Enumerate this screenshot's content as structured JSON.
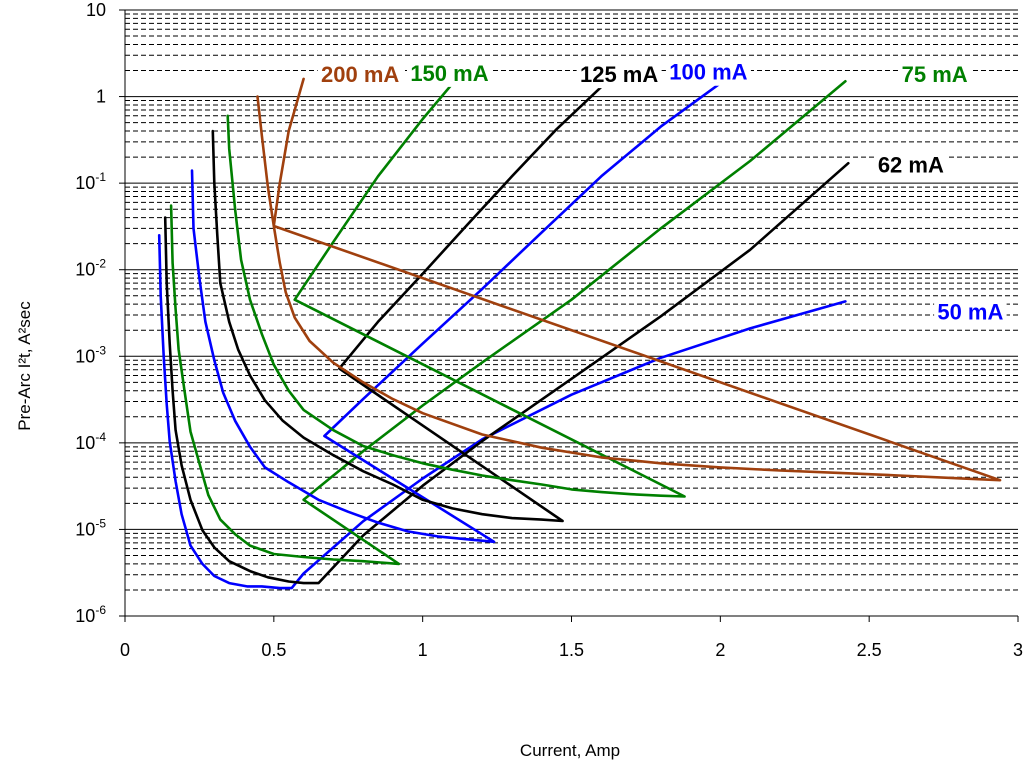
{
  "chart_data": {
    "type": "line",
    "title": "",
    "xlabel": "Current, Amp",
    "ylabel": "Pre-Arc I²t, A²sec",
    "xlim": [
      0,
      3
    ],
    "ylim": [
      1e-06,
      10
    ],
    "y_scale": "log",
    "grid": true,
    "legend": "none (labels placed on the chart next to the curves)",
    "x_ticks": [
      "0",
      "0.5",
      "1",
      "1.5",
      "2",
      "2.5",
      "3"
    ],
    "y_ticks": [
      {
        "value": 10,
        "base": "10",
        "exp": ""
      },
      {
        "value": 1,
        "base": "1",
        "exp": ""
      },
      {
        "value": 0.1,
        "base": "10",
        "exp": "-1"
      },
      {
        "value": 0.01,
        "base": "10",
        "exp": "-2"
      },
      {
        "value": 0.001,
        "base": "10",
        "exp": "-3"
      },
      {
        "value": 0.0001,
        "base": "10",
        "exp": "-4"
      },
      {
        "value": 1e-05,
        "base": "10",
        "exp": "-5"
      },
      {
        "value": 1e-06,
        "base": "10",
        "exp": "-6"
      }
    ],
    "series": [
      {
        "name": "50 mA",
        "color": "#0000ff",
        "label_at": [
          2.84,
          0.0028
        ],
        "points": [
          [
            0.115,
            0.025
          ],
          [
            0.12,
            0.005
          ],
          [
            0.13,
            0.001
          ],
          [
            0.14,
            0.00028
          ],
          [
            0.15,
            0.000104
          ],
          [
            0.17,
            3.6e-05
          ],
          [
            0.19,
            1.5e-05
          ],
          [
            0.22,
            6.5e-06
          ],
          [
            0.26,
            4e-06
          ],
          [
            0.3,
            2.9e-06
          ],
          [
            0.35,
            2.4e-06
          ],
          [
            0.41,
            2.2e-06
          ],
          [
            0.46,
            2.2e-06
          ],
          [
            0.52,
            2.1e-06
          ],
          [
            0.56,
            2.1e-06
          ],
          [
            0.6,
            3.1e-06
          ],
          [
            0.8,
            1.24e-05
          ],
          [
            1.0,
            3.87e-05
          ],
          [
            1.2,
            0.00011
          ],
          [
            1.5,
            0.00036
          ],
          [
            1.8,
            0.00096
          ],
          [
            2.1,
            0.0021
          ],
          [
            2.42,
            0.0043
          ]
        ]
      },
      {
        "name": "62 mA",
        "color": "#000000",
        "label_at": [
          2.64,
          0.14
        ],
        "points": [
          [
            0.135,
            0.04
          ],
          [
            0.14,
            0.007
          ],
          [
            0.15,
            0.0014
          ],
          [
            0.16,
            0.0004
          ],
          [
            0.17,
            0.00014
          ],
          [
            0.19,
            5.5e-05
          ],
          [
            0.22,
            2.2e-05
          ],
          [
            0.26,
            9.8e-06
          ],
          [
            0.3,
            6.2e-06
          ],
          [
            0.35,
            4.3e-06
          ],
          [
            0.42,
            3.3e-06
          ],
          [
            0.48,
            2.8e-06
          ],
          [
            0.55,
            2.5e-06
          ],
          [
            0.6,
            2.4e-06
          ],
          [
            0.65,
            2.4e-06
          ],
          [
            0.8,
            8.5e-06
          ],
          [
            1.0,
            3.2e-05
          ],
          [
            1.2,
            0.000105
          ],
          [
            1.5,
            0.00055
          ],
          [
            1.8,
            0.0029
          ],
          [
            2.1,
            0.017
          ],
          [
            2.43,
            0.17
          ]
        ]
      },
      {
        "name": "75 mA",
        "color": "#008000",
        "label_at": [
          2.72,
          1.55
        ],
        "points": [
          [
            0.155,
            0.055
          ],
          [
            0.16,
            0.012
          ],
          [
            0.17,
            0.0035
          ],
          [
            0.18,
            0.0012
          ],
          [
            0.2,
            0.0004
          ],
          [
            0.22,
            0.000135
          ],
          [
            0.25,
            5.8e-05
          ],
          [
            0.28,
            2.5e-05
          ],
          [
            0.32,
            1.3e-05
          ],
          [
            0.37,
            8.8e-06
          ],
          [
            0.42,
            6.5e-06
          ],
          [
            0.5,
            5.2e-06
          ],
          [
            0.6,
            4.8e-06
          ],
          [
            0.7,
            4.5e-06
          ],
          [
            0.8,
            4.3e-06
          ],
          [
            0.92,
            4e-06
          ],
          [
            0.6,
            2.2e-05
          ],
          [
            0.8,
            8e-05
          ],
          [
            1.0,
            0.00027
          ],
          [
            1.2,
            0.00085
          ],
          [
            1.5,
            0.0045
          ],
          [
            1.8,
            0.03
          ],
          [
            2.1,
            0.18
          ],
          [
            2.42,
            1.5
          ]
        ]
      },
      {
        "name": "100 mA",
        "color": "#0000ff",
        "label_at": [
          1.96,
          1.65
        ],
        "points": [
          [
            0.225,
            0.14
          ],
          [
            0.23,
            0.03
          ],
          [
            0.25,
            0.008
          ],
          [
            0.27,
            0.0025
          ],
          [
            0.3,
            0.0009
          ],
          [
            0.33,
            0.00038
          ],
          [
            0.37,
            0.00018
          ],
          [
            0.42,
            9e-05
          ],
          [
            0.47,
            5.2e-05
          ],
          [
            0.55,
            3.5e-05
          ],
          [
            0.65,
            2.2e-05
          ],
          [
            0.75,
            1.6e-05
          ],
          [
            0.85,
            1.2e-05
          ],
          [
            0.95,
            9.5e-06
          ],
          [
            1.05,
            8.3e-06
          ],
          [
            1.15,
            7.7e-06
          ],
          [
            1.24,
            7.2e-06
          ],
          [
            0.67,
            0.00012
          ],
          [
            0.8,
            0.00032
          ],
          [
            1.0,
            0.0014
          ],
          [
            1.2,
            0.006
          ],
          [
            1.4,
            0.027
          ],
          [
            1.6,
            0.12
          ],
          [
            1.8,
            0.45
          ],
          [
            2.02,
            1.6
          ]
        ]
      },
      {
        "name": "125 mA",
        "color": "#000000",
        "label_at": [
          1.66,
          1.55
        ],
        "points": [
          [
            0.295,
            0.4
          ],
          [
            0.3,
            0.1
          ],
          [
            0.31,
            0.025
          ],
          [
            0.32,
            0.007
          ],
          [
            0.35,
            0.0025
          ],
          [
            0.38,
            0.0012
          ],
          [
            0.42,
            0.0006
          ],
          [
            0.47,
            0.00031
          ],
          [
            0.53,
            0.00018
          ],
          [
            0.6,
            0.000115
          ],
          [
            0.7,
            7.2e-05
          ],
          [
            0.8,
            4.7e-05
          ],
          [
            0.9,
            3.3e-05
          ],
          [
            1.0,
            2.2e-05
          ],
          [
            1.1,
            1.75e-05
          ],
          [
            1.2,
            1.5e-05
          ],
          [
            1.3,
            1.35e-05
          ],
          [
            1.4,
            1.3e-05
          ],
          [
            1.47,
            1.25e-05
          ],
          [
            0.72,
            0.00072
          ],
          [
            0.85,
            0.0025
          ],
          [
            1.0,
            0.009
          ],
          [
            1.15,
            0.033
          ],
          [
            1.3,
            0.12
          ],
          [
            1.45,
            0.42
          ],
          [
            1.62,
            1.5
          ]
        ]
      },
      {
        "name": "150 mA",
        "color": "#008000",
        "label_at": [
          1.09,
          1.6
        ],
        "points": [
          [
            0.345,
            0.6
          ],
          [
            0.35,
            0.25
          ],
          [
            0.37,
            0.05
          ],
          [
            0.39,
            0.013
          ],
          [
            0.42,
            0.0045
          ],
          [
            0.46,
            0.0018
          ],
          [
            0.5,
            0.0008
          ],
          [
            0.55,
            0.0004
          ],
          [
            0.6,
            0.00024
          ],
          [
            0.7,
            0.00014
          ],
          [
            0.8,
            9.2e-05
          ],
          [
            0.9,
            7.2e-05
          ],
          [
            1.0,
            5.8e-05
          ],
          [
            1.1,
            4.9e-05
          ],
          [
            1.2,
            4.2e-05
          ],
          [
            1.3,
            3.7e-05
          ],
          [
            1.4,
            3.3e-05
          ],
          [
            1.5,
            2.9e-05
          ],
          [
            1.6,
            2.7e-05
          ],
          [
            1.7,
            2.55e-05
          ],
          [
            1.8,
            2.45e-05
          ],
          [
            1.88,
            2.4e-05
          ],
          [
            0.57,
            0.0045
          ],
          [
            0.7,
            0.021
          ],
          [
            0.85,
            0.12
          ],
          [
            1.0,
            0.55
          ],
          [
            1.12,
            1.7
          ]
        ]
      },
      {
        "name": "200 mA",
        "color": "#a0400e",
        "label_at": [
          0.79,
          1.55
        ],
        "points": [
          [
            0.445,
            1.0
          ],
          [
            0.46,
            0.35
          ],
          [
            0.48,
            0.09
          ],
          [
            0.5,
            0.032
          ],
          [
            0.52,
            0.012
          ],
          [
            0.54,
            0.0055
          ],
          [
            0.57,
            0.0028
          ],
          [
            0.62,
            0.0015
          ],
          [
            0.7,
            0.00084
          ],
          [
            0.8,
            0.0005
          ],
          [
            0.9,
            0.00032
          ],
          [
            1.0,
            0.00022
          ],
          [
            1.2,
            0.000125
          ],
          [
            1.4,
            8.8e-05
          ],
          [
            1.6,
            6.8e-05
          ],
          [
            1.8,
            5.8e-05
          ],
          [
            2.0,
            5.2e-05
          ],
          [
            2.2,
            4.8e-05
          ],
          [
            2.4,
            4.5e-05
          ],
          [
            2.6,
            4.2e-05
          ],
          [
            2.8,
            3.9e-05
          ],
          [
            2.94,
            3.7e-05
          ],
          [
            0.5,
            0.032
          ],
          [
            0.52,
            0.1
          ],
          [
            0.55,
            0.4
          ],
          [
            0.6,
            1.6
          ]
        ]
      }
    ]
  }
}
